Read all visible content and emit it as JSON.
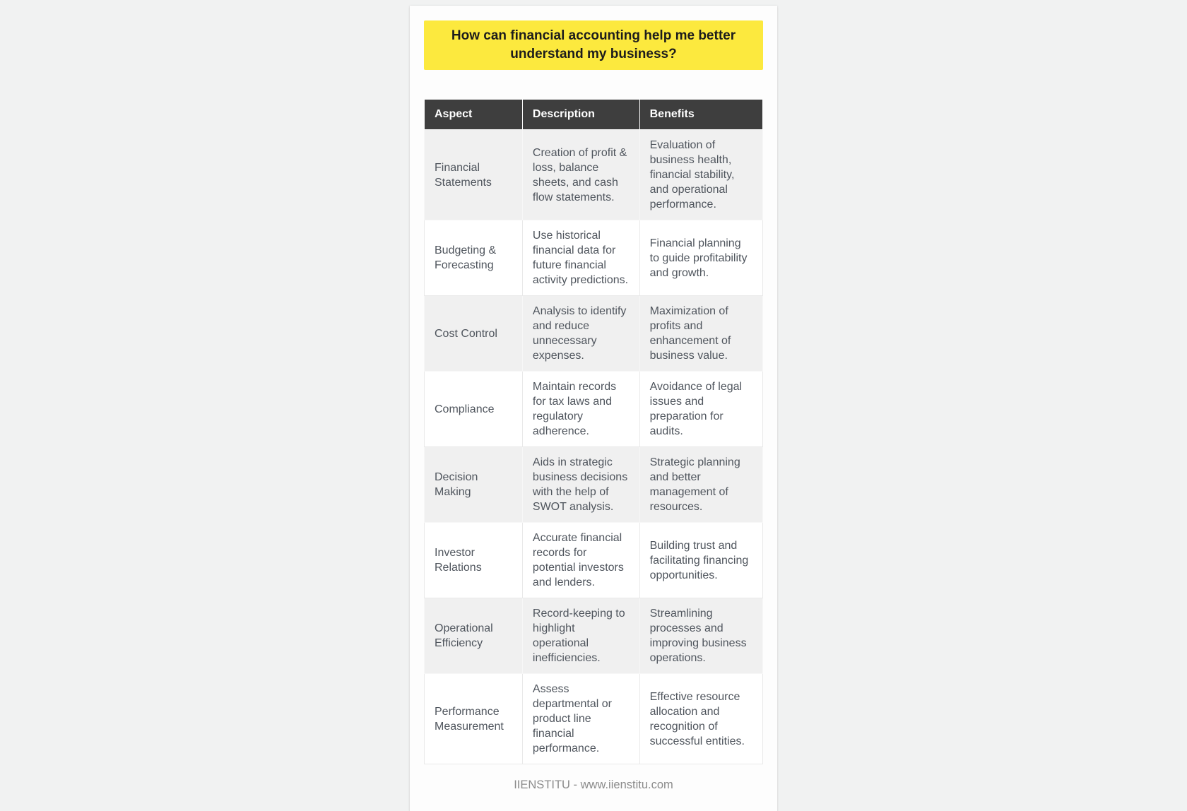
{
  "page": {
    "question": "How can financial accounting help me better understand my business?",
    "footer": "IIENSTITU - www.iienstitu.com"
  },
  "colors": {
    "highlight_yellow": "#fce93e",
    "header_bg": "#3e3e3e",
    "header_text": "#ffffff",
    "row_stripe": "#f0f0f0",
    "body_text": "#4f555d",
    "page_bg": "#f1f2f2",
    "card_bg": "#fdfdfd",
    "footer_text": "#8b8b8b",
    "title_text": "#1c1c1c"
  },
  "table": {
    "columns": [
      "Aspect",
      "Description",
      "Benefits"
    ],
    "rows": [
      {
        "aspect": "Financial Statements",
        "description": "Creation of profit & loss, balance sheets, and cash flow statements.",
        "benefits": "Evaluation of business health, financial stability, and operational performance."
      },
      {
        "aspect": "Budgeting & Forecasting",
        "description": "Use historical financial data for future financial activity predictions.",
        "benefits": "Financial planning to guide profitability and growth."
      },
      {
        "aspect": "Cost Control",
        "description": "Analysis to identify and reduce unnecessary expenses.",
        "benefits": "Maximization of profits and enhancement of business value."
      },
      {
        "aspect": "Compliance",
        "description": "Maintain records for tax laws and regulatory adherence.",
        "benefits": "Avoidance of legal issues and preparation for audits."
      },
      {
        "aspect": "Decision Making",
        "description": "Aids in strategic business decisions with the help of SWOT analysis.",
        "benefits": "Strategic planning and better management of resources."
      },
      {
        "aspect": "Investor Relations",
        "description": "Accurate financial records for potential investors and lenders.",
        "benefits": "Building trust and facilitating financing opportunities."
      },
      {
        "aspect": "Operational Efficiency",
        "description": "Record-keeping to highlight operational inefficiencies.",
        "benefits": "Streamlining processes and improving business operations."
      },
      {
        "aspect": "Performance Measurement",
        "description": "Assess departmental or product line financial performance.",
        "benefits": "Effective resource allocation and recognition of successful entities."
      }
    ]
  }
}
